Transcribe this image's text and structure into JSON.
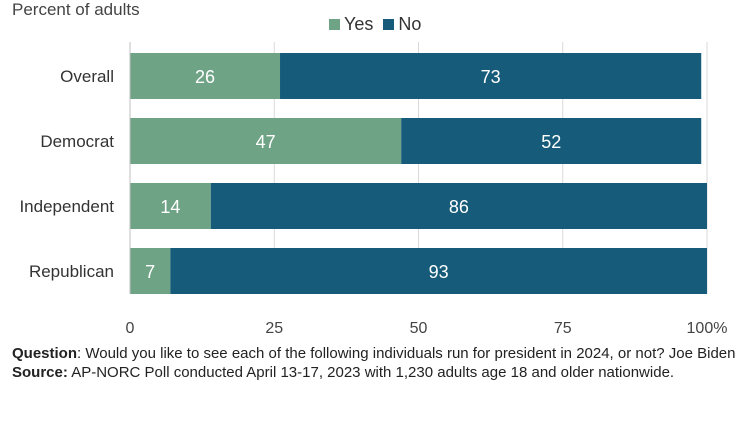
{
  "subtitle": "Percent of adults",
  "legend": [
    {
      "label": "Yes",
      "color": "#6fa386"
    },
    {
      "label": "No",
      "color": "#165b7a"
    }
  ],
  "footer": {
    "question_label": "Question",
    "question_text": ": Would you like to see each of the following individuals run for president in 2024, or not? Joe Biden",
    "source_label": "Source:",
    "source_text": " AP-NORC Poll conducted April 13-17, 2023 with 1,230 adults age 18 and older nationwide."
  },
  "chart_data": {
    "type": "bar",
    "orientation": "horizontal",
    "stacked": true,
    "categories": [
      "Overall",
      "Democrat",
      "Independent",
      "Republican"
    ],
    "series": [
      {
        "name": "Yes",
        "values": [
          26,
          47,
          14,
          7
        ],
        "color": "#6fa386"
      },
      {
        "name": "No",
        "values": [
          73,
          52,
          86,
          93
        ],
        "color": "#165b7a"
      }
    ],
    "xlim": [
      0,
      100
    ],
    "xticks": [
      "0",
      "25",
      "50",
      "75",
      "100%"
    ],
    "grid": true,
    "legend_position": "top"
  }
}
